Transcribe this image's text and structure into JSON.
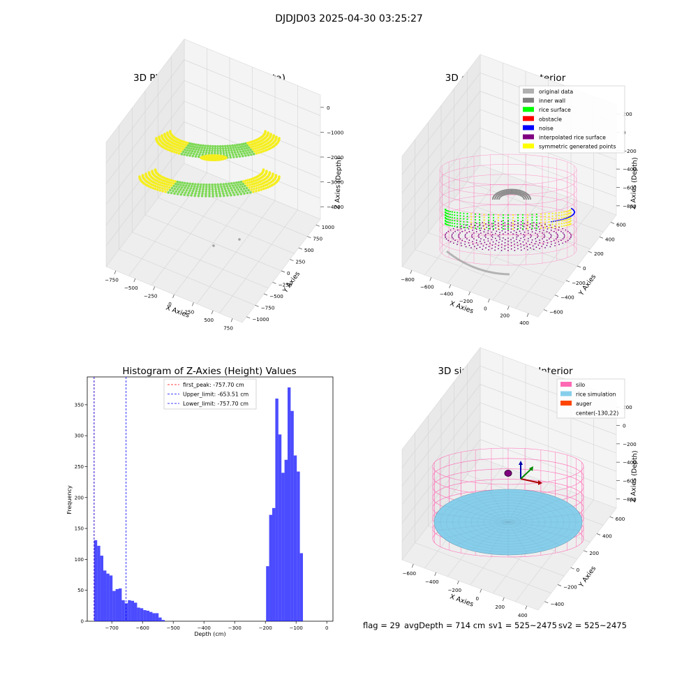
{
  "suptitle": "DJDJD03 2025-04-30 03:25:27",
  "footer": {
    "flag": "flag = 29",
    "avg": "avgDepth = 714 cm",
    "sv1": "sv1 = 525~2475",
    "sv2": "sv2 = 525~2475"
  },
  "colors": {
    "green": "#7ed957",
    "yellow": "#f5ee1e",
    "grey": "#a0a0a0",
    "pink": "#ff69b4",
    "purple": "#800080",
    "blue": "#0000ff",
    "red": "#ff0000",
    "lime": "#00ff00",
    "sky": "#87ceeb",
    "orange": "#ff4500",
    "hist": "#0000ff"
  },
  "chart_data": [
    {
      "type": "scatter",
      "title": "3D Plot of Silo Interior(row data)",
      "xlabel": "X Axies",
      "ylabel": "Y Axies",
      "zlabel": "Z Axies (Depth)",
      "xticks": [
        "−750",
        "−500",
        "−250",
        "0",
        "250",
        "500",
        "750"
      ],
      "yticks": [
        "−1000",
        "−750",
        "−500",
        "−250",
        "0",
        "250",
        "500",
        "750",
        "1000"
      ],
      "zticks": [
        "0",
        "−1000",
        "−2000",
        "−3000",
        "−4000"
      ],
      "grid": true
    },
    {
      "type": "scatter",
      "title": "3D classify of Silo Interior",
      "xlabel": "X Axies",
      "ylabel": "Y Axies",
      "zlabel": "Z Axies (Depth)",
      "xticks": [
        "−800",
        "−600",
        "−400",
        "−200",
        "0",
        "200",
        "400"
      ],
      "yticks": [
        "−600",
        "−400",
        "−200",
        "0",
        "200",
        "400",
        "600"
      ],
      "zticks": [
        "200",
        "0",
        "−200",
        "−400",
        "−600",
        "−800"
      ],
      "legend": {
        "placement": "top-right",
        "items": [
          {
            "label": "original data",
            "color": "#b0b0b0"
          },
          {
            "label": "inner wall",
            "color": "#808080"
          },
          {
            "label": "rice surface",
            "color": "#00ff00"
          },
          {
            "label": "obstacle",
            "color": "#ff0000"
          },
          {
            "label": "noise",
            "color": "#0000ff"
          },
          {
            "label": "interpolated rice surface",
            "color": "#800080"
          },
          {
            "label": "symmetric generated points",
            "color": "#ffff00"
          }
        ]
      },
      "grid": true
    },
    {
      "type": "bar",
      "title": "Histogram of Z-Axies (Height) Values",
      "xlabel": "Depth (cm)",
      "ylabel": "Frequency",
      "xlim": [
        -780,
        20
      ],
      "ylim": [
        0,
        395
      ],
      "xticks": [
        -700,
        -600,
        -500,
        -400,
        -300,
        -200,
        -100,
        0
      ],
      "xtick_labels": [
        "−700",
        "−600",
        "−500",
        "−400",
        "−300",
        "−200",
        "−100",
        "0"
      ],
      "yticks": [
        0,
        50,
        100,
        150,
        200,
        250,
        300,
        350
      ],
      "bin_width": 10,
      "bins": [
        {
          "x": -757.7,
          "v": 131
        },
        {
          "x": -747.7,
          "v": 122
        },
        {
          "x": -737.7,
          "v": 106
        },
        {
          "x": -727.7,
          "v": 82
        },
        {
          "x": -717.7,
          "v": 77
        },
        {
          "x": -707.7,
          "v": 74
        },
        {
          "x": -697.7,
          "v": 49
        },
        {
          "x": -687.7,
          "v": 52
        },
        {
          "x": -677.7,
          "v": 53
        },
        {
          "x": -667.7,
          "v": 34
        },
        {
          "x": -657.7,
          "v": 29
        },
        {
          "x": -647.7,
          "v": 34
        },
        {
          "x": -637.7,
          "v": 33
        },
        {
          "x": -627.7,
          "v": 30
        },
        {
          "x": -617.7,
          "v": 22
        },
        {
          "x": -607.7,
          "v": 21
        },
        {
          "x": -597.7,
          "v": 18
        },
        {
          "x": -587.7,
          "v": 17
        },
        {
          "x": -577.7,
          "v": 15
        },
        {
          "x": -567.7,
          "v": 13
        },
        {
          "x": -557.7,
          "v": 13
        },
        {
          "x": -547.7,
          "v": 6
        },
        {
          "x": -537.7,
          "v": 2
        },
        {
          "x": -197.7,
          "v": 89
        },
        {
          "x": -187.7,
          "v": 172
        },
        {
          "x": -177.7,
          "v": 183
        },
        {
          "x": -167.7,
          "v": 360
        },
        {
          "x": -157.7,
          "v": 302
        },
        {
          "x": -147.7,
          "v": 240
        },
        {
          "x": -137.7,
          "v": 261
        },
        {
          "x": -127.7,
          "v": 378
        },
        {
          "x": -117.7,
          "v": 340
        },
        {
          "x": -107.7,
          "v": 268
        },
        {
          "x": -97.7,
          "v": 242
        },
        {
          "x": -87.7,
          "v": 110
        }
      ],
      "vlines": [
        {
          "label": "first_peak: -757.70 cm",
          "x": -757.7,
          "color": "#ff0000"
        },
        {
          "label": "Upper_limit: -653.51 cm",
          "x": -653.51,
          "color": "#0000ff"
        },
        {
          "label": "Lower_limit: -757.70 cm",
          "x": -757.7,
          "color": "#0000ff"
        }
      ],
      "legend": "top-center"
    },
    {
      "type": "scatter",
      "title": "3D simulation of Silo Interior",
      "xlabel": "X Axies",
      "ylabel": "Y Axies",
      "zlabel": "Z Axies (Depth)",
      "xticks": [
        "−600",
        "−400",
        "−200",
        "0",
        "200",
        "400"
      ],
      "yticks": [
        "−400",
        "−200",
        "0",
        "200",
        "400",
        "600"
      ],
      "zticks": [
        "200",
        "0",
        "−200",
        "−400",
        "−600",
        "−800"
      ],
      "legend": {
        "placement": "top-right",
        "items": [
          {
            "label": "silo",
            "color": "#ff69b4"
          },
          {
            "label": "rice simulation",
            "color": "#87ceeb"
          },
          {
            "label": "auger",
            "color": "#ff4500"
          },
          {
            "label": "center(-130,22)",
            "color": ""
          }
        ]
      },
      "grid": true
    }
  ]
}
